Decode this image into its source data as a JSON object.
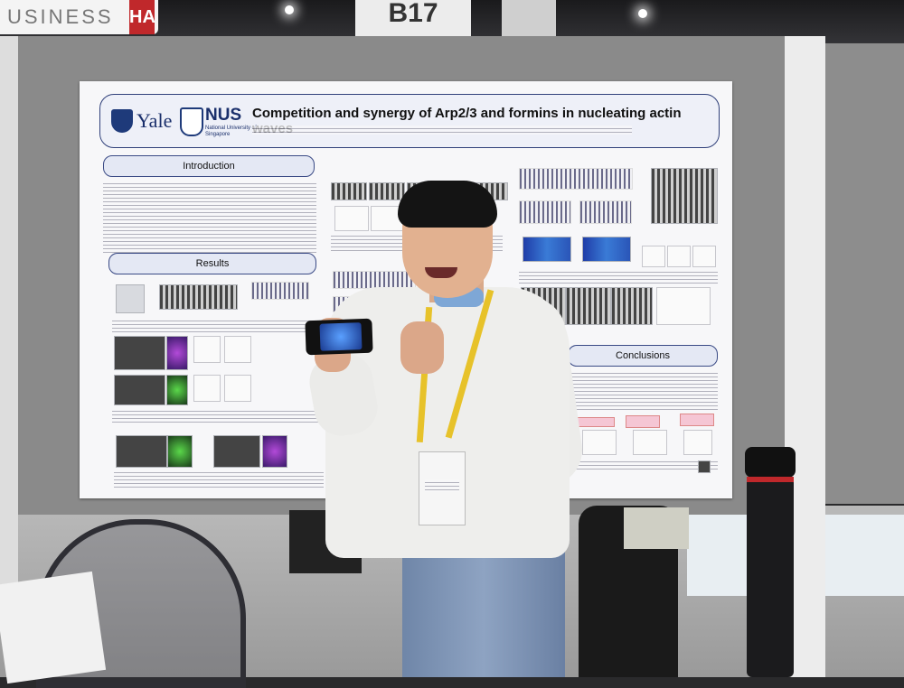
{
  "venue": {
    "sign_left": "USINESS",
    "sign_left_red": "HA",
    "booth_number": "B17"
  },
  "poster": {
    "title": "Competition and synergy of Arp2/3 and formins in nucleating actin waves",
    "logos": {
      "yale": "Yale",
      "nus": "NUS",
      "nus_sub": "National University of Singapore"
    },
    "sections": {
      "introduction": "Introduction",
      "results": "Results",
      "conclusions": "Conclusions"
    }
  },
  "colors": {
    "poster_bg": "#f7f7f9",
    "header_border": "#30407a",
    "lanyard": "#e7c22a",
    "sweater": "#eeeeec",
    "jeans": "#7f96b8"
  }
}
